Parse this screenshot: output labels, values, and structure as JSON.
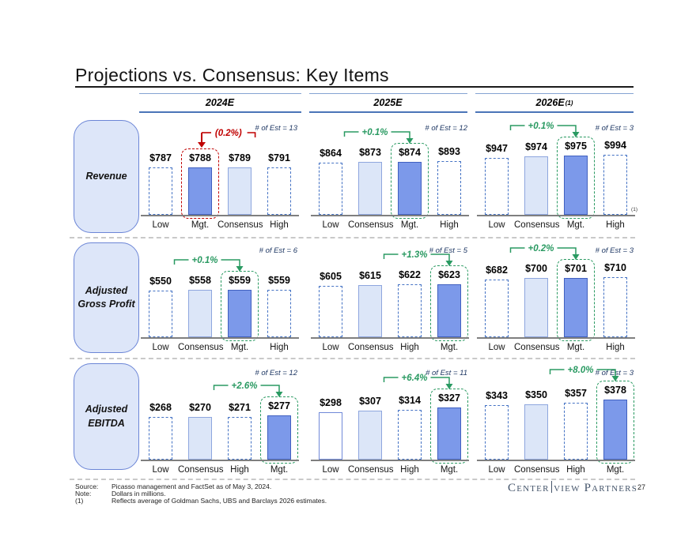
{
  "slide": {
    "title": "Projections vs. Consensus: Key Items",
    "page_number": "27",
    "logo": {
      "part1": "Center",
      "part2": "view Partners"
    }
  },
  "columns": [
    {
      "label": "2024E",
      "sup": ""
    },
    {
      "label": "2025E",
      "sup": ""
    },
    {
      "label": "2026E",
      "sup": "(1)"
    }
  ],
  "rows": [
    {
      "label": "Revenue"
    },
    {
      "label": "Adjusted Gross Profit"
    },
    {
      "label": "Adjusted EBITDA"
    }
  ],
  "footnotes": [
    {
      "label": "Source:",
      "text": "Picasso management and FactSet as of May 3, 2024."
    },
    {
      "label": "Note:",
      "text": "Dollars in millions."
    },
    {
      "label": "(1)",
      "text": "Reflects average of Goldman Sachs, UBS and Barclays 2026 estimates."
    }
  ],
  "colors": {
    "bar_solid": "#7c99ea",
    "bar_light_fill": "#dce6f8",
    "bar_dashed_border": "#4472c4",
    "highlight_green": "#2a9a62",
    "highlight_red": "#c00000",
    "header_underline": "#4a74b8",
    "sidebar_fill": "#dde6f9",
    "logo_color": "#44546a"
  },
  "chart_data": [
    {
      "type": "bar",
      "row": "Revenue",
      "column": "2024E",
      "est_note": "# of Est = 13",
      "categories": [
        "Low",
        "Mgt.",
        "Consensus",
        "High"
      ],
      "values": [
        787,
        788,
        789,
        791
      ],
      "labels": [
        "$787",
        "$788",
        "$789",
        "$791"
      ],
      "styles": [
        "dashed",
        "solid",
        "light",
        "dashed"
      ],
      "highlight": {
        "index": 1,
        "color": "red"
      },
      "annotation": {
        "text": "(0.2%)",
        "color": "red",
        "side": "left"
      }
    },
    {
      "type": "bar",
      "row": "Revenue",
      "column": "2025E",
      "est_note": "# of Est = 12",
      "categories": [
        "Low",
        "Consensus",
        "Mgt.",
        "High"
      ],
      "values": [
        864,
        873,
        874,
        893
      ],
      "labels": [
        "$864",
        "$873",
        "$874",
        "$893"
      ],
      "styles": [
        "dashed",
        "light",
        "solid",
        "dashed"
      ],
      "highlight": {
        "index": 2,
        "color": "green"
      },
      "annotation": {
        "text": "+0.1%",
        "color": "green",
        "side": "right"
      }
    },
    {
      "type": "bar",
      "row": "Revenue",
      "column": "2026E",
      "est_note": "# of Est = 3",
      "categories": [
        "Low",
        "Consensus",
        "Mgt.",
        "High"
      ],
      "values": [
        947,
        974,
        975,
        994
      ],
      "labels": [
        "$947",
        "$974",
        "$975",
        "$994"
      ],
      "styles": [
        "dashed",
        "light",
        "solid",
        "dashed"
      ],
      "highlight": {
        "index": 2,
        "color": "green"
      },
      "annotation": {
        "text": "+0.1%",
        "color": "green",
        "side": "right"
      },
      "axis_note": "(1)"
    },
    {
      "type": "bar",
      "row": "Adjusted Gross Profit",
      "column": "2024E",
      "est_note": "# of Est = 6",
      "categories": [
        "Low",
        "Consensus",
        "Mgt.",
        "High"
      ],
      "values": [
        550,
        558,
        559,
        559
      ],
      "labels": [
        "$550",
        "$558",
        "$559",
        "$559"
      ],
      "styles": [
        "dashed",
        "light",
        "solid",
        "dashed"
      ],
      "highlight": {
        "index": 2,
        "color": "green"
      },
      "annotation": {
        "text": "+0.1%",
        "color": "green",
        "side": "right"
      }
    },
    {
      "type": "bar",
      "row": "Adjusted Gross Profit",
      "column": "2025E",
      "est_note": "# of Est = 5",
      "categories": [
        "Low",
        "Consensus",
        "High",
        "Mgt."
      ],
      "values": [
        605,
        615,
        622,
        623
      ],
      "labels": [
        "$605",
        "$615",
        "$622",
        "$623"
      ],
      "styles": [
        "dashed",
        "light",
        "dashed",
        "solid"
      ],
      "highlight": {
        "index": 3,
        "color": "green"
      },
      "annotation": {
        "text": "+1.3%",
        "color": "green",
        "side": "right"
      }
    },
    {
      "type": "bar",
      "row": "Adjusted Gross Profit",
      "column": "2026E",
      "est_note": "# of Est = 3",
      "categories": [
        "Low",
        "Consensus",
        "Mgt.",
        "High"
      ],
      "values": [
        682,
        700,
        701,
        710
      ],
      "labels": [
        "$682",
        "$700",
        "$701",
        "$710"
      ],
      "styles": [
        "dashed",
        "light",
        "solid",
        "dashed"
      ],
      "highlight": {
        "index": 2,
        "color": "green"
      },
      "annotation": {
        "text": "+0.2%",
        "color": "green",
        "side": "right"
      }
    },
    {
      "type": "bar",
      "row": "Adjusted EBITDA",
      "column": "2024E",
      "est_note": "# of Est = 12",
      "categories": [
        "Low",
        "Consensus",
        "High",
        "Mgt."
      ],
      "values": [
        268,
        270,
        271,
        277
      ],
      "labels": [
        "$268",
        "$270",
        "$271",
        "$277"
      ],
      "styles": [
        "dashed",
        "light",
        "dashed",
        "solid"
      ],
      "highlight": {
        "index": 3,
        "color": "green"
      },
      "annotation": {
        "text": "+2.6%",
        "color": "green",
        "side": "right"
      }
    },
    {
      "type": "bar",
      "row": "Adjusted EBITDA",
      "column": "2025E",
      "est_note": "# of Est = 11",
      "categories": [
        "Low",
        "Consensus",
        "High",
        "Mgt."
      ],
      "values": [
        298,
        307,
        314,
        327
      ],
      "labels": [
        "$298",
        "$307",
        "$314",
        "$327"
      ],
      "styles": [
        "outline",
        "light",
        "dashed",
        "solid"
      ],
      "highlight": {
        "index": 3,
        "color": "green"
      },
      "annotation": {
        "text": "+6.4%",
        "color": "green",
        "side": "right"
      }
    },
    {
      "type": "bar",
      "row": "Adjusted EBITDA",
      "column": "2026E",
      "est_note": "# of Est = 3",
      "categories": [
        "Low",
        "Consensus",
        "High",
        "Mgt."
      ],
      "values": [
        343,
        350,
        357,
        378
      ],
      "labels": [
        "$343",
        "$350",
        "$357",
        "$378"
      ],
      "styles": [
        "dashed",
        "light",
        "dashed",
        "solid"
      ],
      "highlight": {
        "index": 3,
        "color": "green"
      },
      "annotation": {
        "text": "+8.0%",
        "color": "green",
        "side": "right"
      }
    }
  ]
}
